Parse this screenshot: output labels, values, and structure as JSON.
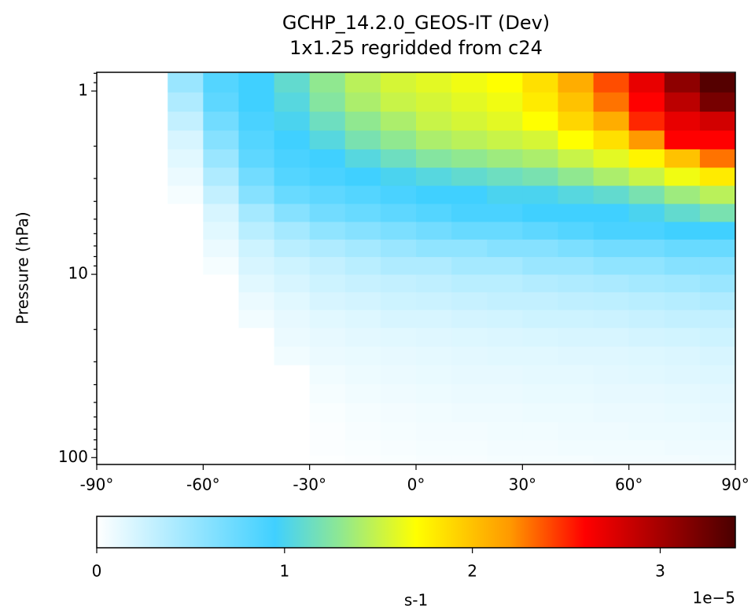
{
  "chart_data": {
    "type": "heatmap",
    "title": "GCHP_14.2.0_GEOS-IT (Dev)",
    "subtitle": "1x1.25 regridded from c24",
    "ylabel": "Pressure (hPa)",
    "colorbar_label": "s-1",
    "colorbar_offset": "1e−5",
    "x": [
      -85,
      -75,
      -65,
      -55,
      -45,
      -35,
      -25,
      -15,
      -5,
      5,
      15,
      25,
      35,
      45,
      55,
      65,
      75,
      85
    ],
    "y": [
      0.9,
      1.15,
      1.46,
      1.85,
      2.34,
      2.93,
      3.69,
      4.62,
      5.8,
      7.2,
      9.0,
      11.2,
      14,
      17.5,
      22,
      28,
      35,
      45,
      57,
      72,
      90,
      105
    ],
    "values": [
      [
        0,
        0,
        0.5,
        0.85,
        0.95,
        1.1,
        1.3,
        1.45,
        1.55,
        1.6,
        1.65,
        1.7,
        1.85,
        2.1,
        2.4,
        2.7,
        3.1,
        3.35
      ],
      [
        0,
        0,
        0.4,
        0.8,
        0.95,
        1.05,
        1.25,
        1.4,
        1.5,
        1.55,
        1.6,
        1.65,
        1.8,
        2.0,
        2.3,
        2.6,
        2.9,
        3.2
      ],
      [
        0,
        0,
        0.3,
        0.7,
        0.9,
        1.0,
        1.15,
        1.3,
        1.4,
        1.5,
        1.55,
        1.6,
        1.7,
        1.9,
        2.1,
        2.5,
        2.7,
        2.8
      ],
      [
        0,
        0,
        0.2,
        0.6,
        0.85,
        0.95,
        1.05,
        1.2,
        1.3,
        1.4,
        1.45,
        1.5,
        1.55,
        1.7,
        1.85,
        2.2,
        2.6,
        2.6
      ],
      [
        0,
        0,
        0.15,
        0.5,
        0.8,
        0.9,
        0.95,
        1.05,
        1.15,
        1.25,
        1.3,
        1.35,
        1.4,
        1.5,
        1.6,
        1.75,
        2.0,
        2.3
      ],
      [
        0,
        0,
        0.1,
        0.4,
        0.7,
        0.85,
        0.9,
        0.95,
        1.0,
        1.05,
        1.1,
        1.15,
        1.2,
        1.3,
        1.4,
        1.5,
        1.65,
        1.8
      ],
      [
        0,
        0,
        0.05,
        0.3,
        0.6,
        0.75,
        0.8,
        0.85,
        0.9,
        0.95,
        0.95,
        1.0,
        1.0,
        1.05,
        1.1,
        1.2,
        1.35,
        1.45
      ],
      [
        0,
        0,
        0,
        0.2,
        0.45,
        0.6,
        0.7,
        0.75,
        0.8,
        0.85,
        0.9,
        0.9,
        0.95,
        0.95,
        0.95,
        1.0,
        1.1,
        1.2
      ],
      [
        0,
        0,
        0,
        0.15,
        0.35,
        0.45,
        0.55,
        0.6,
        0.65,
        0.7,
        0.75,
        0.75,
        0.8,
        0.85,
        0.9,
        0.9,
        0.95,
        0.95
      ],
      [
        0,
        0,
        0,
        0.1,
        0.25,
        0.35,
        0.4,
        0.45,
        0.5,
        0.55,
        0.55,
        0.6,
        0.6,
        0.65,
        0.7,
        0.7,
        0.75,
        0.75
      ],
      [
        0,
        0,
        0,
        0.05,
        0.2,
        0.25,
        0.3,
        0.35,
        0.4,
        0.4,
        0.45,
        0.45,
        0.5,
        0.5,
        0.55,
        0.55,
        0.6,
        0.6
      ],
      [
        0,
        0,
        0,
        0,
        0.15,
        0.2,
        0.25,
        0.28,
        0.3,
        0.32,
        0.35,
        0.35,
        0.38,
        0.4,
        0.42,
        0.45,
        0.47,
        0.5
      ],
      [
        0,
        0,
        0,
        0,
        0.1,
        0.15,
        0.2,
        0.22,
        0.25,
        0.26,
        0.28,
        0.3,
        0.3,
        0.32,
        0.33,
        0.35,
        0.37,
        0.4
      ],
      [
        0,
        0,
        0,
        0,
        0.07,
        0.12,
        0.15,
        0.17,
        0.2,
        0.2,
        0.22,
        0.23,
        0.25,
        0.25,
        0.26,
        0.28,
        0.3,
        0.3
      ],
      [
        0,
        0,
        0,
        0,
        0,
        0.1,
        0.12,
        0.14,
        0.15,
        0.16,
        0.17,
        0.18,
        0.19,
        0.2,
        0.2,
        0.22,
        0.23,
        0.25
      ],
      [
        0,
        0,
        0,
        0,
        0,
        0.07,
        0.1,
        0.11,
        0.12,
        0.13,
        0.14,
        0.15,
        0.15,
        0.16,
        0.16,
        0.17,
        0.18,
        0.2
      ],
      [
        0,
        0,
        0,
        0,
        0,
        0,
        0.07,
        0.09,
        0.1,
        0.11,
        0.12,
        0.12,
        0.13,
        0.13,
        0.14,
        0.15,
        0.16,
        0.17
      ],
      [
        0,
        0,
        0,
        0,
        0,
        0,
        0.05,
        0.07,
        0.08,
        0.09,
        0.1,
        0.1,
        0.11,
        0.11,
        0.12,
        0.12,
        0.13,
        0.14
      ],
      [
        0,
        0,
        0,
        0,
        0,
        0,
        0.03,
        0.05,
        0.06,
        0.07,
        0.08,
        0.08,
        0.09,
        0.09,
        0.1,
        0.1,
        0.11,
        0.12
      ],
      [
        0,
        0,
        0,
        0,
        0,
        0,
        0.02,
        0.04,
        0.05,
        0.06,
        0.06,
        0.07,
        0.07,
        0.08,
        0.08,
        0.09,
        0.09,
        0.1
      ],
      [
        0,
        0,
        0,
        0,
        0,
        0,
        0.02,
        0.03,
        0.04,
        0.05,
        0.05,
        0.06,
        0.06,
        0.07,
        0.07,
        0.07,
        0.08,
        0.08
      ],
      [
        0,
        0,
        0,
        0,
        0,
        0,
        0.01,
        0.02,
        0.03,
        0.04,
        0.04,
        0.05,
        0.05,
        0.05,
        0.06,
        0.06,
        0.06,
        0.07
      ]
    ],
    "xlim": [
      -90,
      90
    ],
    "xticks": [
      {
        "value": -90,
        "label": "-90°"
      },
      {
        "value": -60,
        "label": "-60°"
      },
      {
        "value": -30,
        "label": "-30°"
      },
      {
        "value": 0,
        "label": "0°"
      },
      {
        "value": 30,
        "label": "30°"
      },
      {
        "value": 60,
        "label": "60°"
      },
      {
        "value": 90,
        "label": "90°"
      }
    ],
    "ylim": [
      0.79,
      109
    ],
    "yticks": [
      1,
      10,
      100
    ],
    "yminorticks": [
      0.8,
      0.9,
      2,
      3,
      4,
      5,
      6,
      7,
      8,
      9,
      20,
      30,
      40,
      50,
      60,
      70,
      80,
      90
    ],
    "ylog": true,
    "yinverted": true,
    "clim": [
      0,
      3.4
    ],
    "cticks": [
      0,
      1,
      2,
      3
    ],
    "colormap": [
      {
        "value": 0,
        "color": "#ffffff"
      },
      {
        "value": 0.95,
        "color": "#40d0ff"
      },
      {
        "value": 1.3,
        "color": "#90e890"
      },
      {
        "value": 1.7,
        "color": "#ffff00"
      },
      {
        "value": 2.2,
        "color": "#ff9900"
      },
      {
        "value": 2.6,
        "color": "#ff0000"
      },
      {
        "value": 3.4,
        "color": "#4a0000"
      }
    ]
  }
}
